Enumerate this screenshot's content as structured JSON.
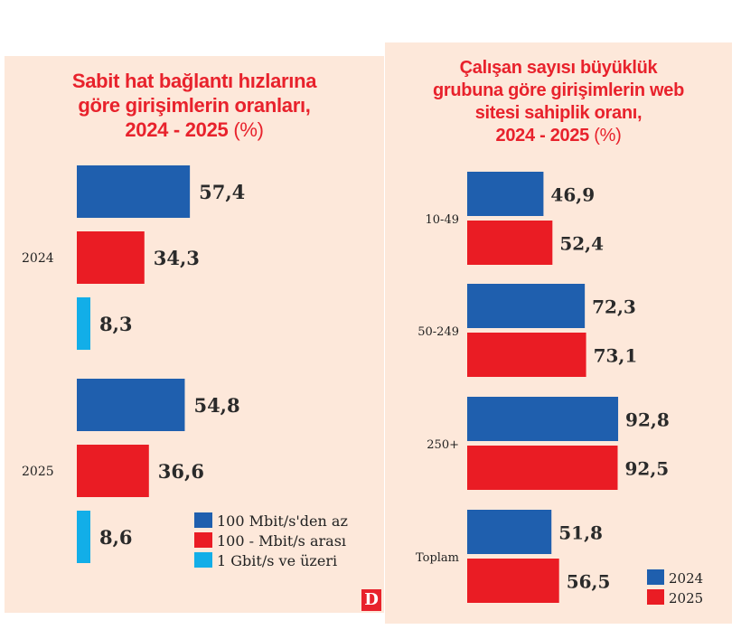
{
  "chart_data": [
    {
      "type": "bar",
      "orientation": "horizontal",
      "title": "Sabit hat bağlantı hızlarına göre girişimlerin oranları, 2024 - 2025",
      "title_unit": "(%)",
      "categories": [
        "2024",
        "2025"
      ],
      "series": [
        {
          "name": "100 Mbit/s'den az",
          "color": "#1f5fae",
          "values": [
            57.4,
            54.8
          ],
          "labels": [
            "57,4",
            "54,8"
          ]
        },
        {
          "name": "100 - Mbit/s arası",
          "color": "#ea1c24",
          "values": [
            34.3,
            36.6
          ],
          "labels": [
            "34,3",
            "36,6"
          ]
        },
        {
          "name": "1 Gbit/s ve üzeri",
          "color": "#12aee8",
          "values": [
            8.3,
            8.6
          ],
          "labels": [
            "8,3",
            "8,6"
          ]
        }
      ],
      "legend": "bottom-right",
      "grid": false
    },
    {
      "type": "bar",
      "orientation": "horizontal",
      "title": "Çalışan sayısı büyüklük grubuna göre girişimlerin web sitesi sahiplik oranı, 2024 - 2025",
      "title_unit": "(%)",
      "categories": [
        "10-49",
        "50-249",
        "250+",
        "Toplam"
      ],
      "series": [
        {
          "name": "2024",
          "color": "#1f5fae",
          "values": [
            46.9,
            72.3,
            92.8,
            51.8
          ],
          "labels": [
            "46,9",
            "72,3",
            "92,8",
            "51,8"
          ]
        },
        {
          "name": "2025",
          "color": "#ea1c24",
          "values": [
            52.4,
            73.1,
            92.5,
            56.5
          ],
          "labels": [
            "52,4",
            "73,1",
            "92,5",
            "56,5"
          ]
        }
      ],
      "legend": "bottom-right",
      "grid": false
    }
  ],
  "logo": "D"
}
